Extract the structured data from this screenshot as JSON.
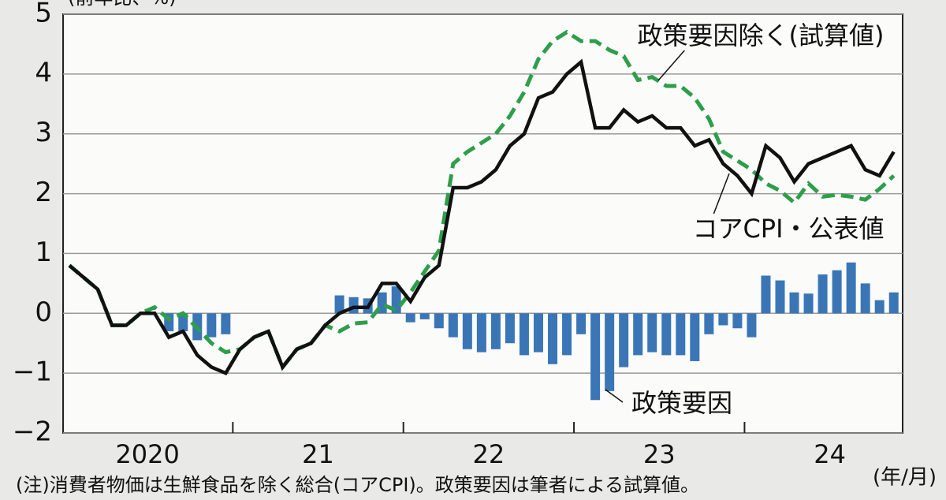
{
  "chart_data": {
    "type": "bar_line",
    "y_axis_label": "(前年比、%)",
    "note": "(注)消費者物価は生鮮食品を除く総合(コアCPI)。政策要因は筆者による試算値。",
    "x_axis_label": "(年/月)",
    "categories": [
      null,
      null,
      null,
      null,
      null,
      "2020",
      null,
      null,
      null,
      null,
      null,
      null,
      null,
      null,
      null,
      null,
      null,
      "21",
      null,
      null,
      null,
      null,
      null,
      null,
      null,
      null,
      null,
      null,
      null,
      "22",
      null,
      null,
      null,
      null,
      null,
      null,
      null,
      null,
      null,
      null,
      null,
      "23",
      null,
      null,
      null,
      null,
      null,
      null,
      null,
      null,
      null,
      null,
      null,
      "24",
      null,
      null,
      null,
      null,
      null
    ],
    "series": [
      {
        "name": "政策要因",
        "kind": "bar",
        "color": "#3a76b6",
        "values": [
          0,
          0,
          0,
          0,
          0,
          0,
          0,
          -0.3,
          -0.3,
          -0.45,
          -0.4,
          -0.35,
          0,
          0,
          0,
          0,
          0,
          0,
          0,
          0.3,
          0.27,
          0.25,
          0.35,
          0.45,
          -0.15,
          -0.1,
          -0.25,
          -0.4,
          -0.6,
          -0.65,
          -0.6,
          -0.5,
          -0.7,
          -0.65,
          -0.85,
          -0.7,
          -0.35,
          -1.45,
          -1.3,
          -0.9,
          -0.7,
          -0.65,
          -0.7,
          -0.7,
          -0.8,
          -0.35,
          -0.2,
          -0.25,
          -0.4,
          0.63,
          0.55,
          0.35,
          0.33,
          0.65,
          0.72,
          0.85,
          0.5,
          0.22,
          0.35
        ]
      },
      {
        "name": "政策要因除く(試算値)",
        "kind": "line",
        "dashed": true,
        "color": "#2e9e4a",
        "values": [
          0.8,
          0.6,
          0.4,
          -0.2,
          -0.2,
          0,
          0.1,
          -0.1,
          0,
          -0.25,
          -0.5,
          -0.65,
          -0.6,
          -0.4,
          -0.3,
          -0.9,
          -0.6,
          -0.5,
          -0.2,
          -0.3,
          -0.17,
          -0.15,
          0.15,
          0.05,
          0.35,
          0.7,
          1.05,
          2.5,
          2.7,
          2.85,
          3,
          3.3,
          3.7,
          4.25,
          4.55,
          4.7,
          4.55,
          4.55,
          4.4,
          4.3,
          3.9,
          3.95,
          3.8,
          3.8,
          3.6,
          3.25,
          2.7,
          2.55,
          2.4,
          2.17,
          2.05,
          1.85,
          2.17,
          1.95,
          1.98,
          1.95,
          1.9,
          2.08,
          2.3
        ]
      },
      {
        "name": "コアCPI・公表値",
        "kind": "line",
        "dashed": false,
        "color": "#111111",
        "values": [
          0.8,
          0.6,
          0.4,
          -0.2,
          -0.2,
          0,
          0,
          -0.4,
          -0.3,
          -0.7,
          -0.9,
          -1.0,
          -0.6,
          -0.4,
          -0.3,
          -0.9,
          -0.6,
          -0.5,
          -0.2,
          0,
          0.1,
          0.1,
          0.5,
          0.5,
          0.2,
          0.6,
          0.8,
          2.1,
          2.1,
          2.2,
          2.4,
          2.8,
          3,
          3.6,
          3.7,
          4,
          4.2,
          3.1,
          3.1,
          3.4,
          3.2,
          3.3,
          3.1,
          3.1,
          2.8,
          2.9,
          2.5,
          2.3,
          2,
          2.8,
          2.6,
          2.2,
          2.5,
          2.6,
          2.7,
          2.8,
          2.4,
          2.3,
          2.7
        ]
      }
    ],
    "ylim": [
      -2,
      5
    ],
    "yticks": [
      {
        "value": -2,
        "label": "−2"
      },
      {
        "value": -1,
        "label": "−1"
      },
      0,
      1,
      2,
      3,
      4,
      5
    ],
    "grid": true
  }
}
